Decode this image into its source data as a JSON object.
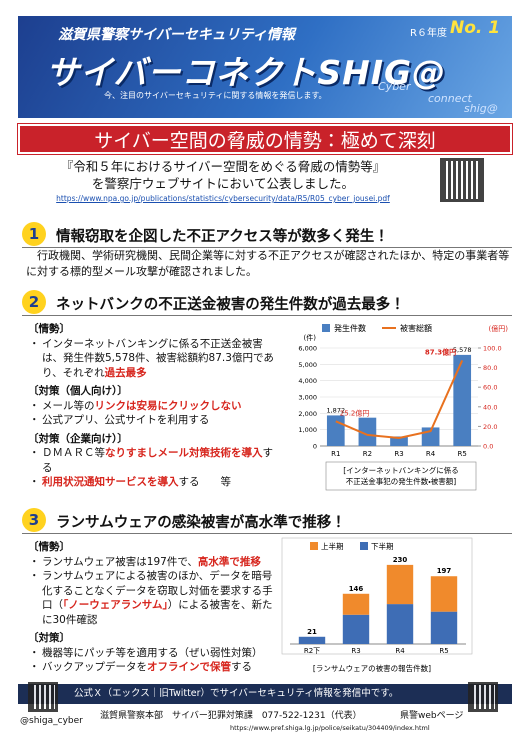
{
  "header": {
    "org": "滋賀県警察サイバーセキュリティ情報",
    "issue": "R６年度",
    "number": "No. 1",
    "title": "サイバーコネクトSHIG@",
    "tagline": "今、注目のサイバーセキュリティに関する情報を発信します。",
    "deco": [
      "Cyber",
      "connect",
      "shig@"
    ]
  },
  "banner": "サイバー空間の脅威の情勢：極めて深刻",
  "intro": {
    "lines": [
      "『令和５年におけるサイバー空間をめぐる脅威の情勢等』",
      "を警察庁ウェブサイトにおいて公表しました。"
    ],
    "url": "https://www.npa.go.jp/publications/statistics/cybersecurity/data/R5/R05_cyber_jousei.pdf"
  },
  "sections": [
    {
      "number": "1",
      "heading": "情報窃取を企図した不正アクセス等が数多く発生！",
      "body": "行政機関、学術研究機関、民間企業等に対する不正アクセスが確認されたほか、特定の事業者等に対する標的型メール攻撃が確認されました。"
    },
    {
      "number": "2",
      "heading": "ネットバンクの不正送金被害の発生件数が過去最多！",
      "blocks": [
        {
          "label": "〔情勢〕",
          "items": [
            [
              {
                "text": "インターネットバンキングに係る不正送金被害は、発生件数5,578件、被害総額約87.3億円であり、それぞれ",
                "color": "#111111"
              },
              {
                "text": "過去最多",
                "color": "#d7261e"
              }
            ]
          ]
        },
        {
          "label": "〔対策（個人向け）〕",
          "items": [
            [
              {
                "text": "メール等の",
                "color": "#111111"
              },
              {
                "text": "リンクは安易にクリックしない",
                "color": "#d7261e"
              }
            ],
            [
              {
                "text": "公式アプリ、公式サイトを利用する",
                "color": "#111111"
              }
            ]
          ]
        },
        {
          "label": "〔対策（企業向け）〕",
          "items": [
            [
              {
                "text": "ＤＭＡＲＣ等",
                "color": "#111111"
              },
              {
                "text": "なりすましメール対策技術を導入",
                "color": "#d7261e"
              },
              {
                "text": "する",
                "color": "#111111"
              }
            ],
            [
              {
                "text": "利用状況通知サービスを導入",
                "color": "#d7261e"
              },
              {
                "text": "する　　等",
                "color": "#111111"
              }
            ]
          ]
        }
      ]
    },
    {
      "number": "3",
      "heading": "ランサムウェアの感染被害が高水準で推移！",
      "blocks": [
        {
          "label": "〔情勢〕",
          "items": [
            [
              {
                "text": "ランサムウェア被害は197件で、",
                "color": "#111111"
              },
              {
                "text": "高水準で推移",
                "color": "#d7261e"
              }
            ],
            [
              {
                "text": "ランサムウェアによる被害のほか、データを暗号化することなくデータを窃取し対価を要求する手口（",
                "color": "#111111"
              },
              {
                "text": "「ノーウェアランサム」",
                "color": "#d7261e"
              },
              {
                "text": "）による被害を、新たに30件確認",
                "color": "#111111"
              }
            ]
          ]
        },
        {
          "label": "〔対策〕",
          "items": [
            [
              {
                "text": "機器等にパッチ等を適用する（ぜい弱性対策）",
                "color": "#111111"
              }
            ],
            [
              {
                "text": "バックアップデータを",
                "color": "#111111"
              },
              {
                "text": "オフラインで保管",
                "color": "#d7261e"
              },
              {
                "text": "する",
                "color": "#111111"
              }
            ]
          ]
        }
      ]
    }
  ],
  "chart_data": [
    {
      "type": "bar-line",
      "categories": [
        "R1",
        "R2",
        "R3",
        "R4",
        "R5"
      ],
      "series": [
        {
          "name": "発生件数",
          "color": "#4a7fc1",
          "values": [
            1872,
            1734,
            584,
            1136,
            5578
          ],
          "value_labels": [
            "1,872",
            null,
            null,
            null,
            "5,578"
          ]
        },
        {
          "name": "被害総額",
          "color": "#e8711f",
          "axis": "y2",
          "values": [
            25.2,
            11.3,
            8.2,
            15.2,
            87.3
          ],
          "value_labels": [
            "25.2億円",
            null,
            null,
            null,
            "87.3億円"
          ]
        }
      ],
      "ylim": [
        0,
        6000
      ],
      "yticks": [
        0,
        {
          "value": 1000,
          "label": "1,000"
        },
        {
          "value": 2000,
          "label": "2,000"
        },
        {
          "value": 3000,
          "label": "3,000"
        },
        {
          "value": 4000,
          "label": "4,000"
        },
        {
          "value": 5000,
          "label": "5,000"
        },
        {
          "value": 6000,
          "label": "6,000"
        }
      ],
      "y2lim": [
        0,
        100
      ],
      "y2ticks": [
        {
          "value": 0,
          "label": "0.0"
        },
        {
          "value": 20,
          "label": "20.0"
        },
        {
          "value": 40,
          "label": "40.0"
        },
        {
          "value": 60,
          "label": "60.0"
        },
        {
          "value": 80,
          "label": "80.0"
        },
        {
          "value": 100,
          "label": "100.0"
        }
      ],
      "y_unit": "(件)",
      "y2_unit": "(億円)",
      "grid": true,
      "caption": [
        "[インターネットバンキングに係る",
        "不正送金事犯の発生件数・被害額]"
      ]
    },
    {
      "type": "stacked-bar",
      "categories": [
        "R2下",
        "R3",
        "R4",
        "R5"
      ],
      "series": [
        {
          "name": "上半期",
          "color": "#f08a2c",
          "values": [
            null,
            61,
            114,
            103
          ]
        },
        {
          "name": "下半期",
          "color": "#3e6db5",
          "values": [
            21,
            85,
            116,
            94
          ]
        }
      ],
      "totals": [
        21,
        146,
        230,
        197
      ],
      "ylim": [
        0,
        250
      ],
      "grid": true,
      "caption": [
        "[ランサムウェアの被害の報告件数]"
      ]
    }
  ],
  "footer": {
    "notice": "公式Ｘ（エックス｜旧Twitter）でサイバーセキュリティ情報を発信中です。",
    "web": "県警webページ",
    "account": "@shiga_cyber",
    "org": "滋賀県警察本部　サイバー犯罪対策課　077-522-1231（代表）",
    "url": "https://www.pref.shiga.lg.jp/police/seikatu/304409/index.html"
  }
}
